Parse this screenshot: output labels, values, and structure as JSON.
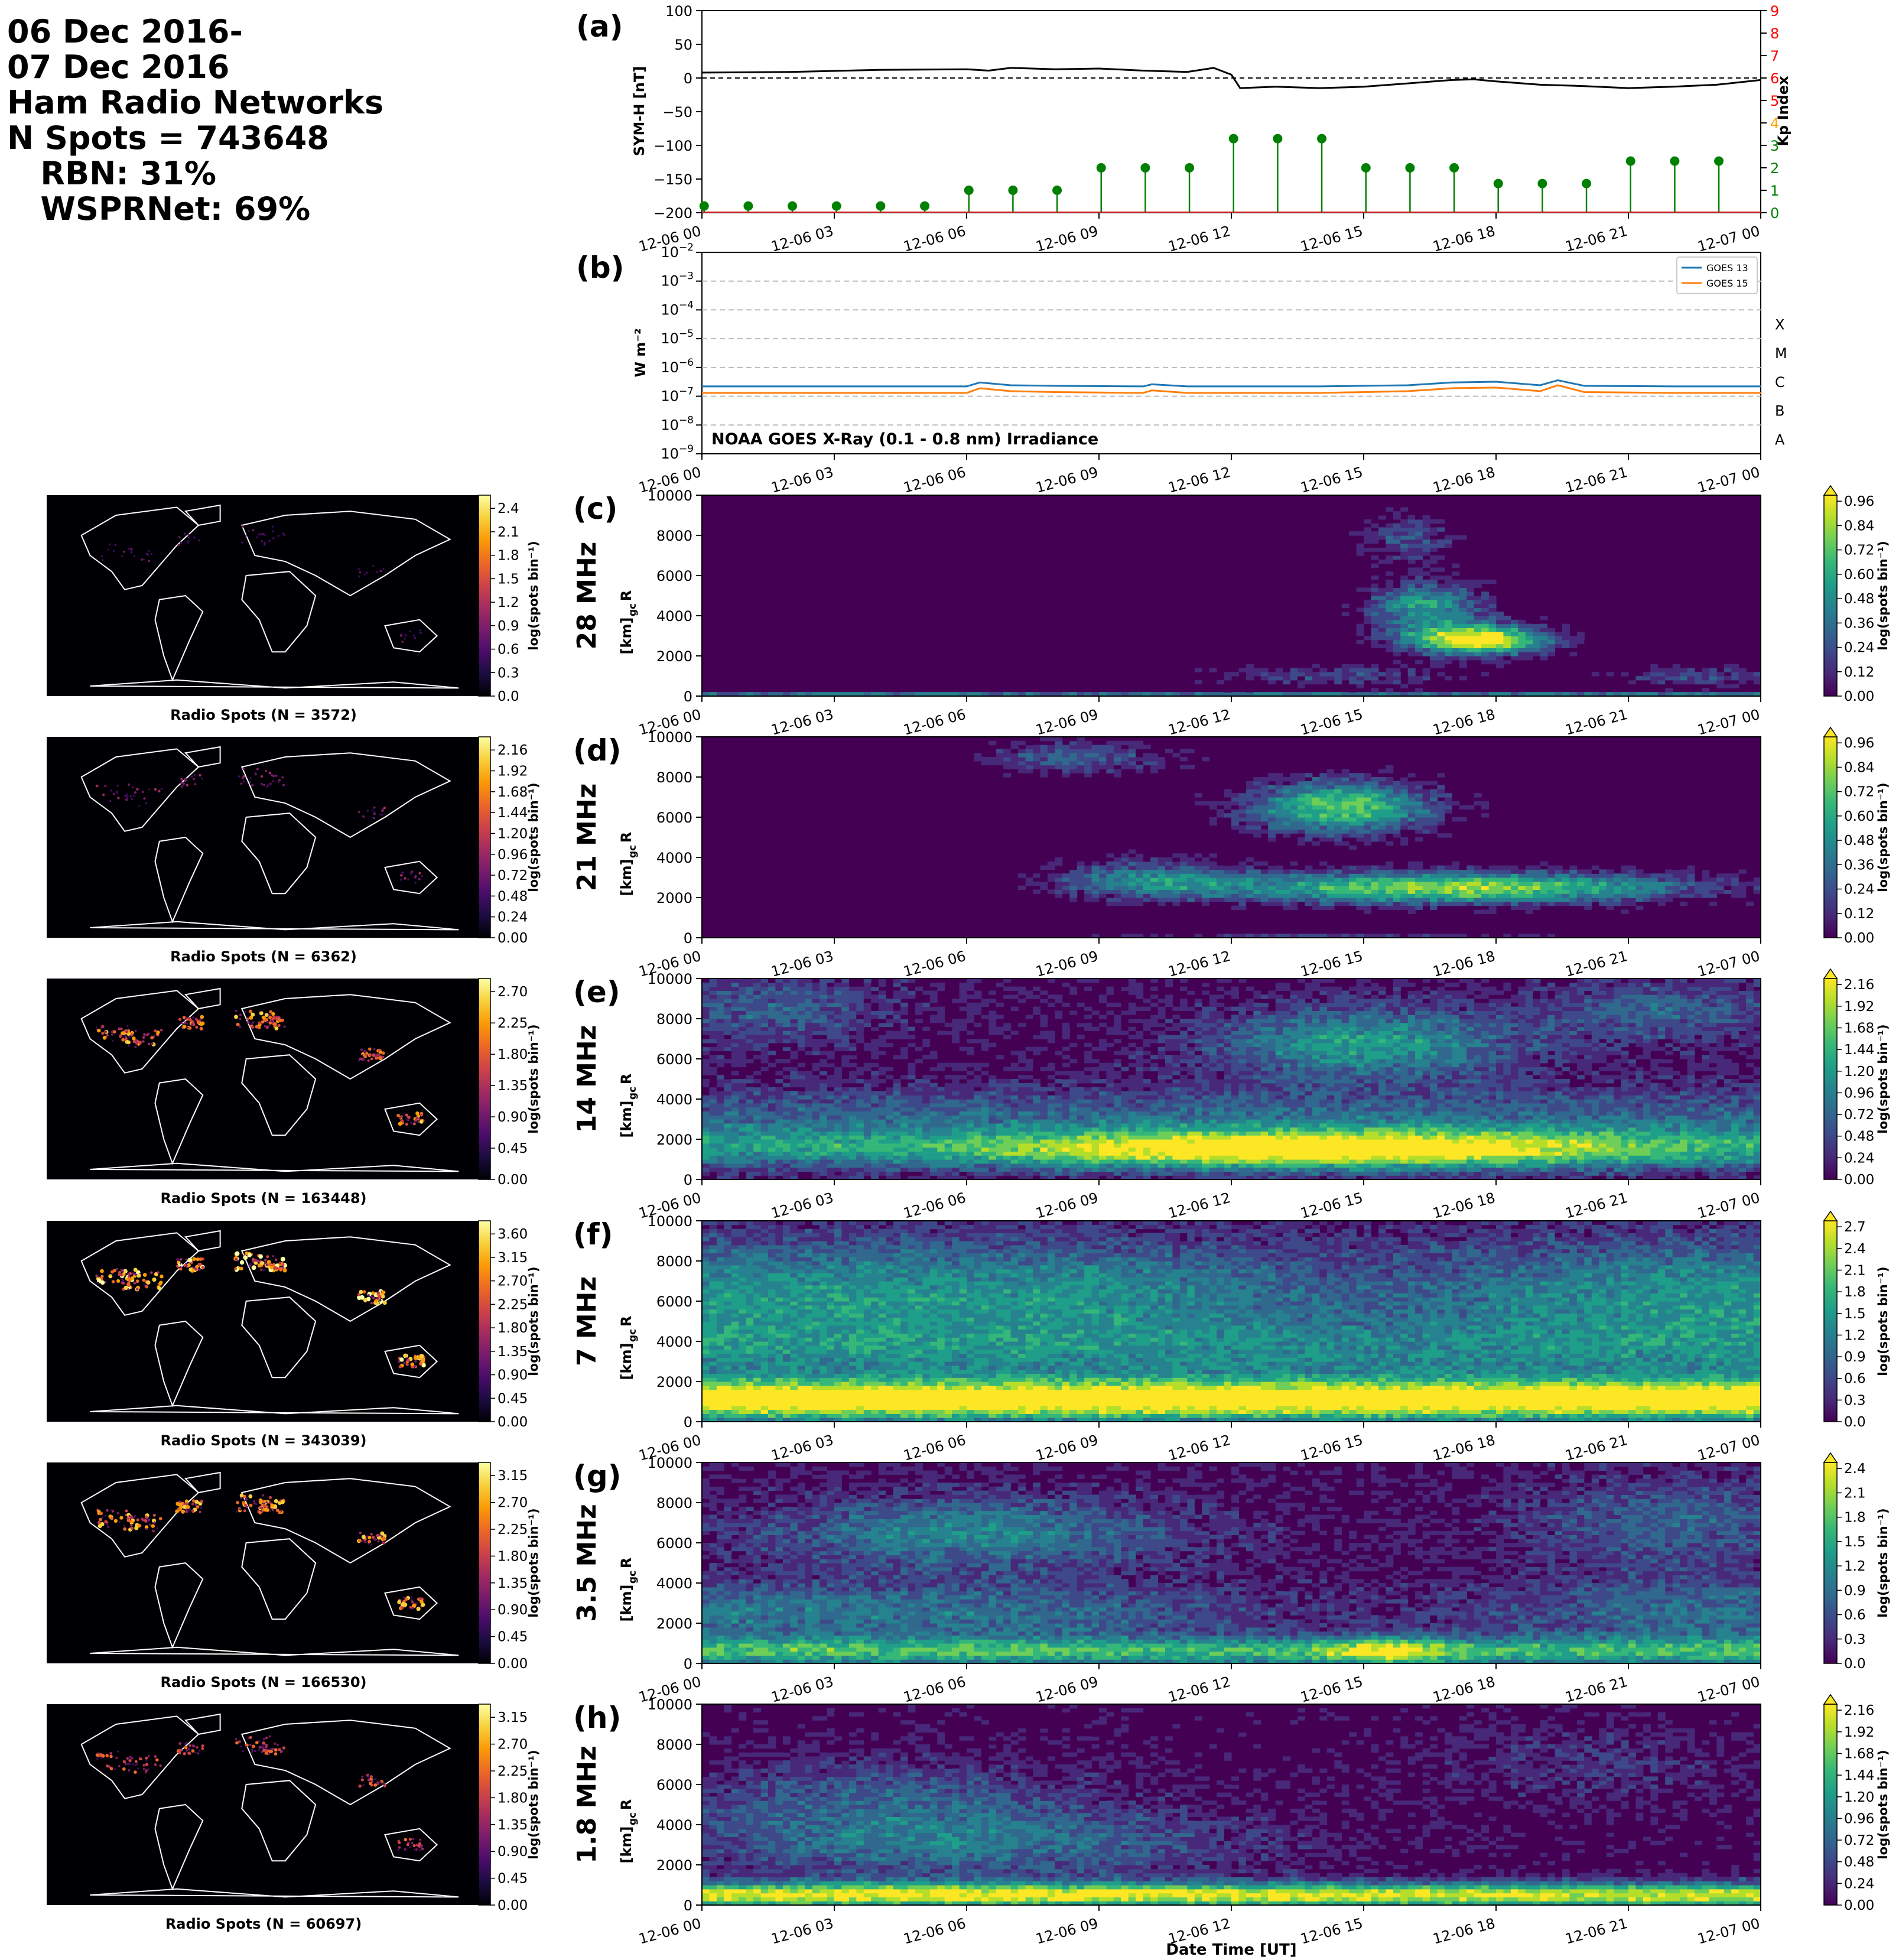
{
  "header": {
    "line1": "06 Dec 2016-",
    "line2": "07 Dec 2016",
    "line3": "Ham Radio Networks",
    "line4": "N Spots = 743648",
    "line5": "   RBN: 31%",
    "line6": "   WSPRNet: 69%"
  },
  "time_ticks": [
    "12-06 00",
    "12-06 03",
    "12-06 06",
    "12-06 09",
    "12-06 12",
    "12-06 15",
    "12-06 18",
    "12-06 21",
    "12-07 00"
  ],
  "xlabel": "Date Time [UT]",
  "colors": {
    "symh": "#000000",
    "kp": "#008000",
    "goes13": "#1f77b4",
    "goes15": "#ff7f0e",
    "map_bg": "#000004",
    "coast": "#ffffff"
  },
  "chart_data": [
    {
      "type": "line",
      "panel_label": "(a)",
      "ylabel": "SYM-H [nT]",
      "ylim": [
        -200,
        100
      ],
      "yticks": [
        100,
        50,
        0,
        -50,
        -100,
        -150,
        -200
      ],
      "x_hours": [
        0,
        2,
        4,
        6,
        6.5,
        7,
        8,
        9,
        10,
        11,
        11.6,
        12,
        12.2,
        13,
        14,
        15,
        16,
        17,
        17.5,
        18,
        19,
        20,
        21,
        22,
        23,
        24
      ],
      "symh": [
        8,
        9,
        12,
        13,
        11,
        15,
        13,
        14,
        11,
        9,
        15,
        5,
        -15,
        -13,
        -15,
        -13,
        -8,
        -3,
        -2,
        -5,
        -10,
        -12,
        -15,
        -13,
        -10,
        -3
      ],
      "kp_label": "Kp Index",
      "kp_ylim": [
        0,
        9
      ],
      "kp_hours": [
        0,
        1,
        2,
        3,
        4,
        5,
        6,
        7,
        8,
        9,
        10,
        11,
        12,
        13,
        14,
        15,
        16,
        17,
        18,
        19,
        20,
        21,
        22,
        23
      ],
      "kp": [
        0.3,
        0.3,
        0.3,
        0.3,
        0.3,
        0.3,
        1.0,
        1.0,
        1.0,
        2.0,
        2.0,
        2.0,
        3.3,
        3.3,
        3.3,
        2.0,
        2.0,
        2.0,
        1.3,
        1.3,
        1.3,
        2.3,
        2.3,
        2.3
      ]
    },
    {
      "type": "line",
      "panel_label": "(b)",
      "ylabel": "W m⁻²",
      "log_scale": true,
      "ylim_exp": [
        -9,
        -2
      ],
      "flare_classes": [
        "X",
        "M",
        "C",
        "B",
        "A"
      ],
      "annotation": "NOAA GOES X-Ray (0.1 - 0.8 nm) Irradiance",
      "x_hours": [
        0,
        2,
        4,
        6,
        6.3,
        7,
        8,
        10,
        10.2,
        11,
        12,
        14,
        16,
        17,
        18,
        19,
        19.4,
        20,
        22,
        24
      ],
      "series": [
        {
          "name": "GOES 13",
          "values": [
            2.2e-07,
            2.2e-07,
            2.2e-07,
            2.2e-07,
            3e-07,
            2.4e-07,
            2.3e-07,
            2.2e-07,
            2.6e-07,
            2.2e-07,
            2.2e-07,
            2.2e-07,
            2.4e-07,
            3e-07,
            3.2e-07,
            2.4e-07,
            3.6e-07,
            2.3e-07,
            2.2e-07,
            2.2e-07
          ]
        },
        {
          "name": "GOES 15",
          "values": [
            1.3e-07,
            1.3e-07,
            1.3e-07,
            1.3e-07,
            1.9e-07,
            1.5e-07,
            1.4e-07,
            1.3e-07,
            1.6e-07,
            1.3e-07,
            1.3e-07,
            1.3e-07,
            1.5e-07,
            1.9e-07,
            2e-07,
            1.5e-07,
            2.4e-07,
            1.4e-07,
            1.3e-07,
            1.3e-07
          ]
        }
      ]
    },
    {
      "type": "heatmap",
      "panel_label": "(c)",
      "band": "28 MHz",
      "ylabel": "R_gc [km]",
      "ylim": [
        0,
        10000
      ],
      "yticks": [
        0,
        2000,
        4000,
        6000,
        8000,
        10000
      ],
      "cbar_ticks": [
        "0.00",
        "0.12",
        "0.24",
        "0.36",
        "0.48",
        "0.60",
        "0.72",
        "0.84",
        "0.96"
      ],
      "cbar_label": "log(spots bin⁻¹)",
      "vmax": 0.96,
      "map": {
        "cbar_ticks": [
          "0.0",
          "0.3",
          "0.6",
          "0.9",
          "1.2",
          "1.5",
          "1.8",
          "2.1",
          "2.4"
        ],
        "caption": "Radio Spots (N = 3572)",
        "intensity": 0.15
      }
    },
    {
      "type": "heatmap",
      "panel_label": "(d)",
      "band": "21 MHz",
      "ylabel": "R_gc [km]",
      "ylim": [
        0,
        10000
      ],
      "yticks": [
        0,
        2000,
        4000,
        6000,
        8000,
        10000
      ],
      "cbar_ticks": [
        "0.00",
        "0.12",
        "0.24",
        "0.36",
        "0.48",
        "0.60",
        "0.72",
        "0.84",
        "0.96"
      ],
      "cbar_label": "log(spots bin⁻¹)",
      "vmax": 0.96,
      "map": {
        "cbar_ticks": [
          "0.00",
          "0.24",
          "0.48",
          "0.72",
          "0.96",
          "1.20",
          "1.44",
          "1.68",
          "1.92",
          "2.16"
        ],
        "caption": "Radio Spots (N = 6362)",
        "intensity": 0.3
      }
    },
    {
      "type": "heatmap",
      "panel_label": "(e)",
      "band": "14 MHz",
      "ylabel": "R_gc [km]",
      "ylim": [
        0,
        10000
      ],
      "yticks": [
        0,
        2000,
        4000,
        6000,
        8000,
        10000
      ],
      "cbar_ticks": [
        "0.00",
        "0.24",
        "0.48",
        "0.72",
        "0.96",
        "1.20",
        "1.44",
        "1.68",
        "1.92",
        "2.16"
      ],
      "cbar_label": "log(spots bin⁻¹)",
      "vmax": 2.16,
      "map": {
        "cbar_ticks": [
          "0.00",
          "0.45",
          "0.90",
          "1.35",
          "1.80",
          "2.25",
          "2.70"
        ],
        "caption": "Radio Spots (N = 163448)",
        "intensity": 0.8
      }
    },
    {
      "type": "heatmap",
      "panel_label": "(f)",
      "band": "7 MHz",
      "ylabel": "R_gc [km]",
      "ylim": [
        0,
        10000
      ],
      "yticks": [
        0,
        2000,
        4000,
        6000,
        8000,
        10000
      ],
      "cbar_ticks": [
        "0.0",
        "0.3",
        "0.6",
        "0.9",
        "1.2",
        "1.5",
        "1.8",
        "2.1",
        "2.4",
        "2.7"
      ],
      "cbar_label": "log(spots bin⁻¹)",
      "vmax": 2.7,
      "map": {
        "cbar_ticks": [
          "0.00",
          "0.45",
          "0.90",
          "1.35",
          "1.80",
          "2.25",
          "2.70",
          "3.15",
          "3.60"
        ],
        "caption": "Radio Spots (N = 343039)",
        "intensity": 1.0
      }
    },
    {
      "type": "heatmap",
      "panel_label": "(g)",
      "band": "3.5 MHz",
      "ylabel": "R_gc [km]",
      "ylim": [
        0,
        10000
      ],
      "yticks": [
        0,
        2000,
        4000,
        6000,
        8000,
        10000
      ],
      "cbar_ticks": [
        "0.0",
        "0.3",
        "0.6",
        "0.9",
        "1.2",
        "1.5",
        "1.8",
        "2.1",
        "2.4"
      ],
      "cbar_label": "log(spots bin⁻¹)",
      "vmax": 2.4,
      "map": {
        "cbar_ticks": [
          "0.00",
          "0.45",
          "0.90",
          "1.35",
          "1.80",
          "2.25",
          "2.70",
          "3.15"
        ],
        "caption": "Radio Spots (N = 166530)",
        "intensity": 0.85
      }
    },
    {
      "type": "heatmap",
      "panel_label": "(h)",
      "band": "1.8 MHz",
      "ylabel": "R_gc [km]",
      "ylim": [
        0,
        10000
      ],
      "yticks": [
        0,
        2000,
        4000,
        6000,
        8000,
        10000
      ],
      "cbar_ticks": [
        "0.00",
        "0.24",
        "0.48",
        "0.72",
        "0.96",
        "1.20",
        "1.44",
        "1.68",
        "1.92",
        "2.16"
      ],
      "cbar_label": "log(spots bin⁻¹)",
      "vmax": 2.16,
      "map": {
        "cbar_ticks": [
          "0.00",
          "0.45",
          "0.90",
          "1.35",
          "1.80",
          "2.25",
          "2.70",
          "3.15"
        ],
        "caption": "Radio Spots (N = 60697)",
        "intensity": 0.6
      }
    }
  ]
}
